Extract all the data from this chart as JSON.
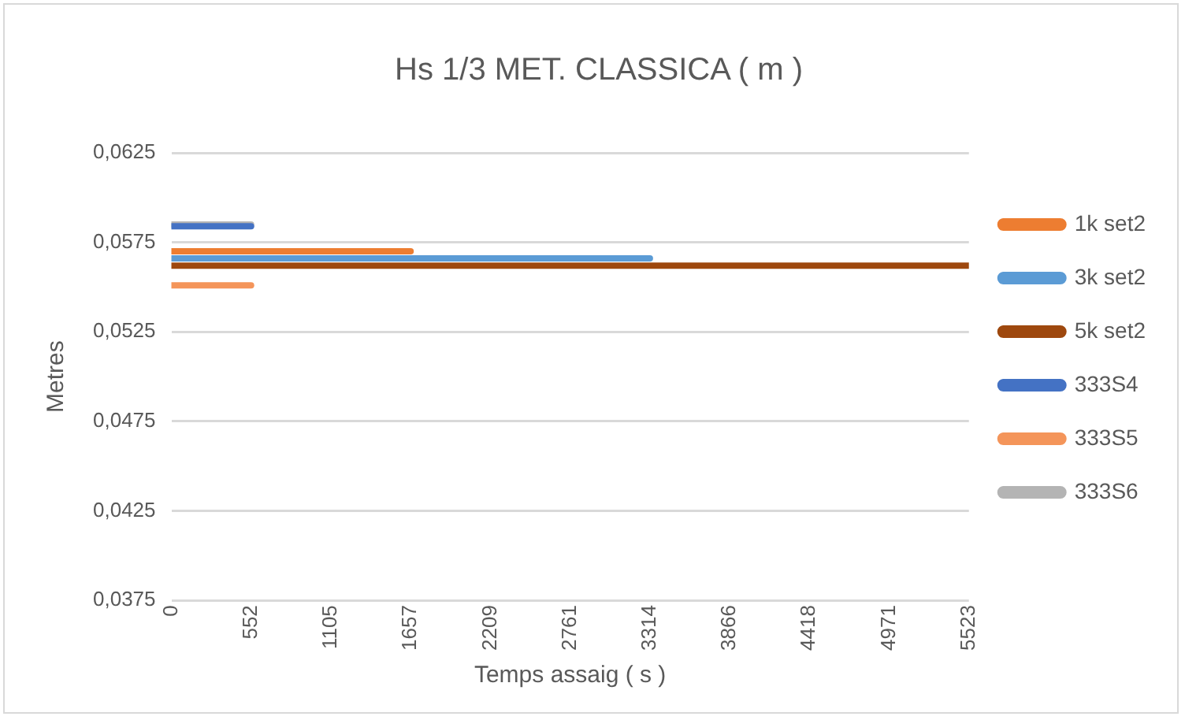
{
  "chart_data": {
    "type": "line",
    "title": "Hs 1/3 MET. CLASSICA ( m )",
    "xlabel": "Temps assaig ( s )",
    "ylabel": "Metres",
    "xlim": [
      0,
      5523
    ],
    "xticks": [
      0,
      {
        "value": 552.3,
        "label": "552"
      },
      {
        "value": 1104.6,
        "label": "1105"
      },
      {
        "value": 1656.9,
        "label": "1657"
      },
      {
        "value": 2209.2,
        "label": "2209"
      },
      {
        "value": 2761.5,
        "label": "2761"
      },
      {
        "value": 3313.8,
        "label": "3314"
      },
      {
        "value": 3866.1,
        "label": "3866"
      },
      {
        "value": 4418.4,
        "label": "4418"
      },
      {
        "value": 4970.7,
        "label": "4971"
      },
      5523
    ],
    "ylim": [
      0.0375,
      0.0625
    ],
    "yticks": [
      {
        "value": 0.0375,
        "label": "0,0375"
      },
      {
        "value": 0.0425,
        "label": "0,0425"
      },
      {
        "value": 0.0475,
        "label": "0,0475"
      },
      {
        "value": 0.0525,
        "label": "0,0525"
      },
      {
        "value": 0.0575,
        "label": "0,0575"
      },
      {
        "value": 0.0625,
        "label": "0,0625"
      }
    ],
    "grid": "y",
    "legend": "right",
    "marker": "none",
    "line_style": "solid",
    "series": [
      {
        "name": "1k set2",
        "color": "#ed7d31",
        "x": [
          0,
          1657
        ],
        "values": [
          0.057,
          0.057
        ]
      },
      {
        "name": "3k set2",
        "color": "#5b9bd5",
        "x": [
          0,
          3314
        ],
        "values": [
          0.0566,
          0.0566
        ]
      },
      {
        "name": "5k set2",
        "color": "#9e480e",
        "x": [
          0,
          5523
        ],
        "values": [
          0.0562,
          0.0562
        ]
      },
      {
        "name": "333S4",
        "color": "#4472c4",
        "x": [
          0,
          552
        ],
        "values": [
          0.0584,
          0.0584
        ]
      },
      {
        "name": "333S5",
        "color": "#f4955a",
        "x": [
          0,
          552
        ],
        "values": [
          0.0551,
          0.0551
        ]
      },
      {
        "name": "333S6",
        "color": "#b4b4b4",
        "x": [
          0,
          552
        ],
        "values": [
          0.0585,
          0.0585
        ]
      }
    ]
  }
}
